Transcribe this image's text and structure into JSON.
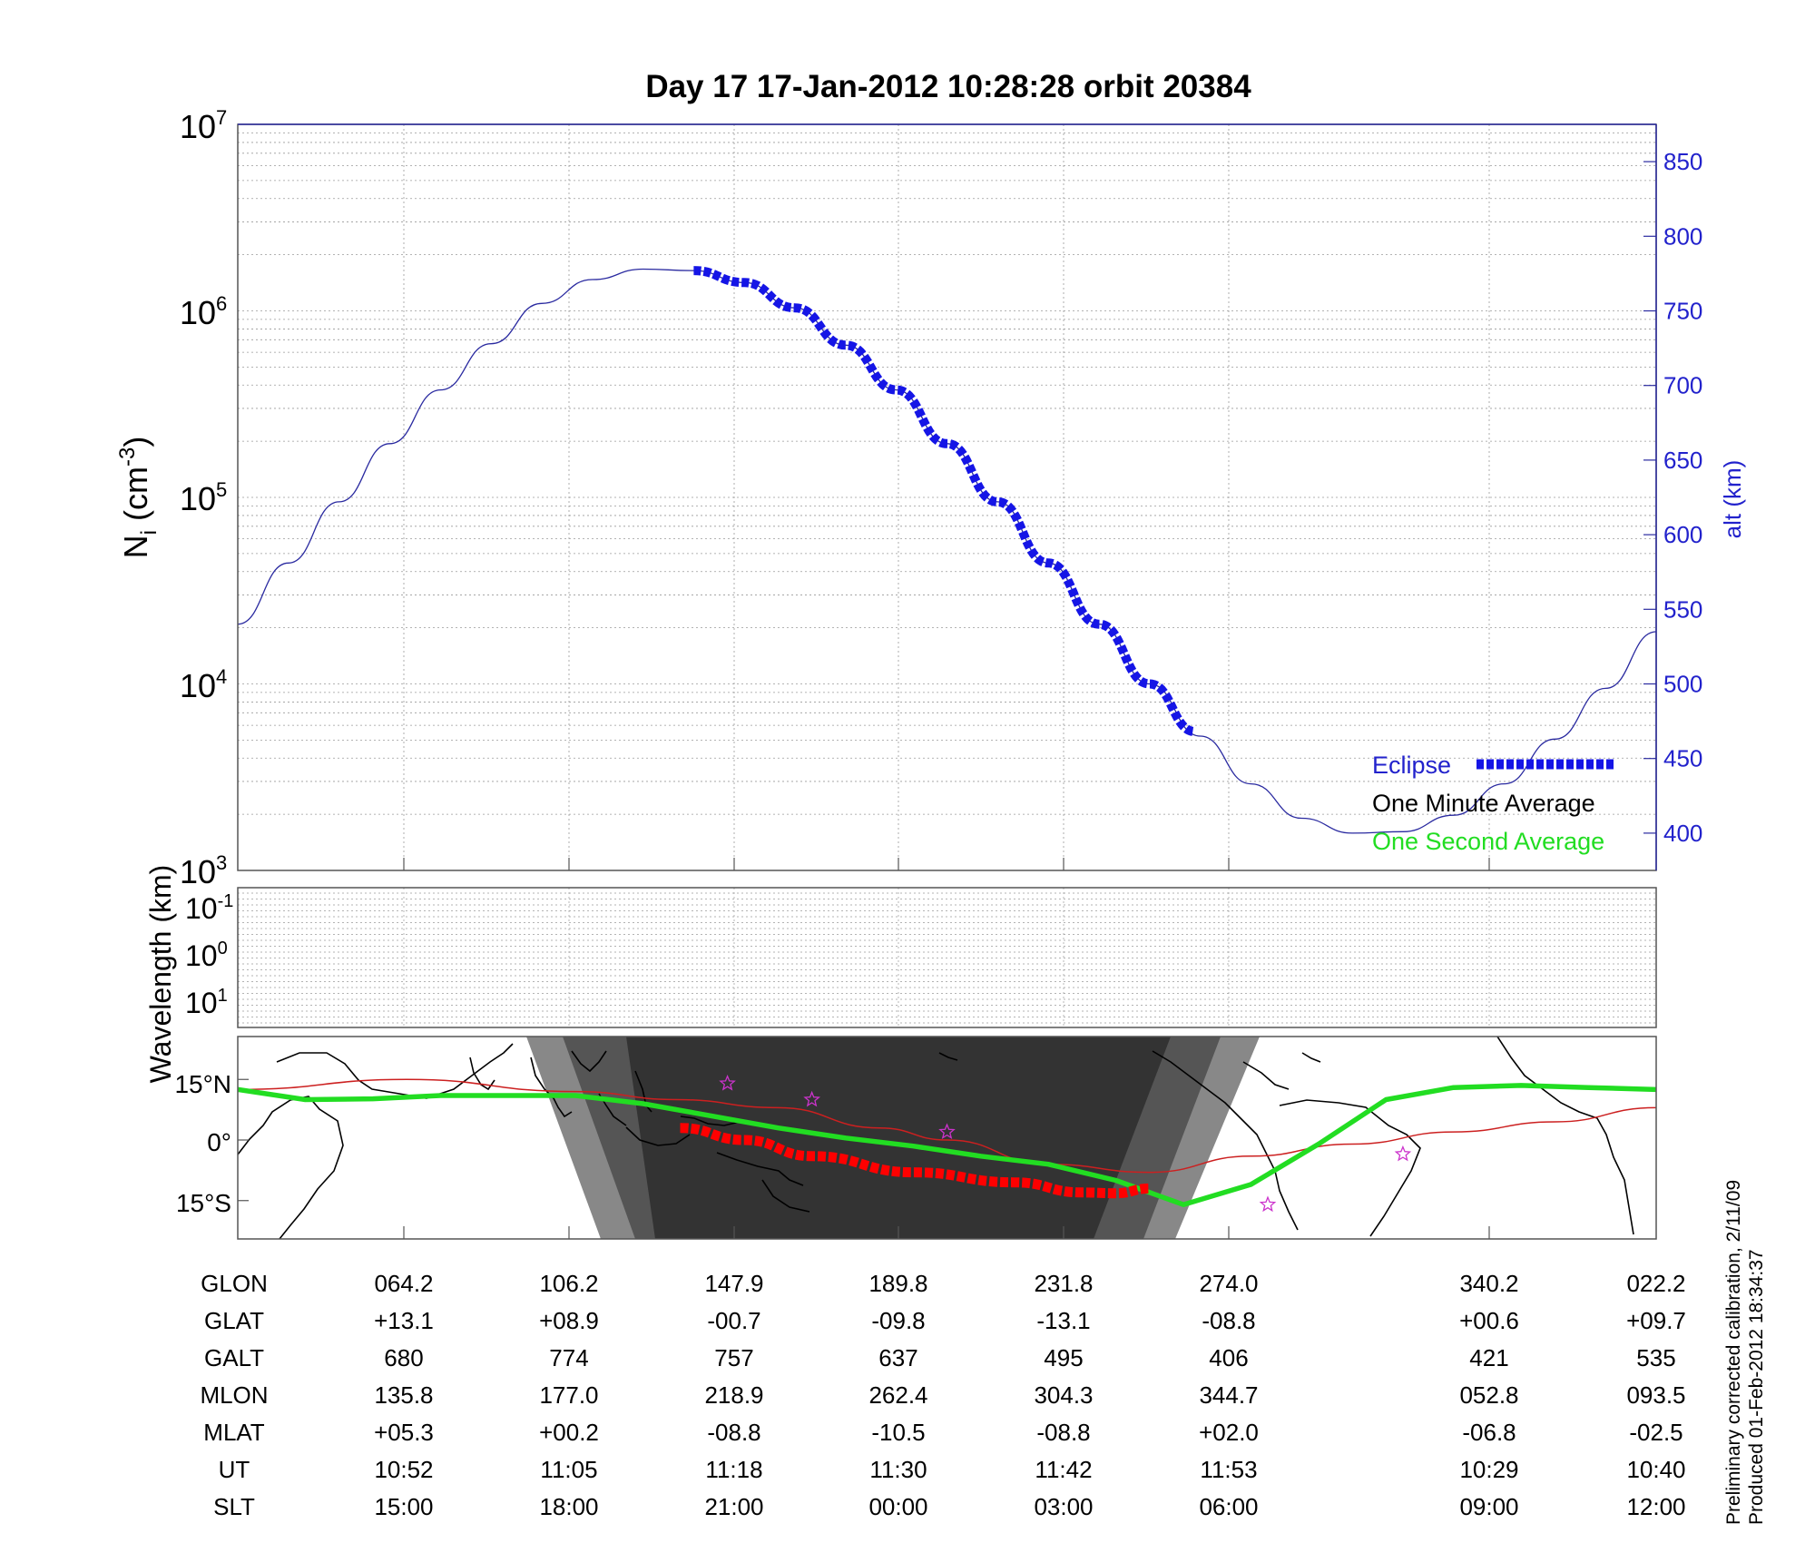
{
  "chart_data": [
    {
      "type": "line",
      "title": "Day 17  17-Jan-2012 10:28:28   orbit 20384",
      "ylabel": "N_i (cm^-3)",
      "ylabel_parts": {
        "main": "N",
        "sub": "i",
        "open": " (cm",
        "sup": "-3",
        "close": ")"
      },
      "yscale": "log",
      "ylim": [
        1000,
        10000000
      ],
      "y_ticks": [
        {
          "base": "10",
          "exp": "3"
        },
        {
          "base": "10",
          "exp": "4"
        },
        {
          "base": "10",
          "exp": "5"
        },
        {
          "base": "10",
          "exp": "6"
        },
        {
          "base": "10",
          "exp": "7"
        }
      ],
      "y2label": "alt (km)",
      "y2lim": [
        375,
        875
      ],
      "y2_ticks": [
        "400",
        "450",
        "500",
        "550",
        "600",
        "650",
        "700",
        "750",
        "800",
        "850"
      ],
      "grid": true,
      "legend_placement": "bottom-right",
      "series": [
        {
          "name": "alt (km)",
          "color": "#2a2aa0",
          "points": [
            [
              0,
              540
            ],
            [
              1,
              581
            ],
            [
              2,
              622
            ],
            [
              3,
              661
            ],
            [
              4,
              697
            ],
            [
              5,
              728
            ],
            [
              6,
              755
            ],
            [
              7,
              771
            ],
            [
              8,
              778
            ],
            [
              9,
              777
            ],
            [
              10,
              769
            ],
            [
              11,
              752
            ],
            [
              12,
              727
            ],
            [
              13,
              697
            ],
            [
              14,
              661
            ],
            [
              15,
              622
            ],
            [
              16,
              581
            ],
            [
              17,
              540
            ],
            [
              18,
              500
            ],
            [
              19,
              465
            ],
            [
              20,
              433
            ],
            [
              21,
              410
            ],
            [
              22,
              400
            ],
            [
              23,
              401
            ],
            [
              24,
              412
            ],
            [
              25,
              433
            ],
            [
              26,
              463
            ],
            [
              27,
              497
            ],
            [
              28,
              535
            ]
          ]
        },
        {
          "name": "Eclipse",
          "color": "#1515e6",
          "style": "dotted-thick",
          "points": [
            [
              9.0,
              777
            ],
            [
              10,
              769
            ],
            [
              11,
              752
            ],
            [
              12,
              727
            ],
            [
              13,
              697
            ],
            [
              14,
              661
            ],
            [
              15,
              622
            ],
            [
              16,
              581
            ],
            [
              17,
              540
            ],
            [
              18,
              500
            ],
            [
              18.9,
              468
            ]
          ]
        }
      ],
      "legend": [
        {
          "label": "Eclipse",
          "color": "#2222cc",
          "marker": "thick-dotted-line",
          "marker_color": "#1515e6"
        },
        {
          "label": "One Minute Average",
          "color": "#000000"
        },
        {
          "label": "One Second Average",
          "color": "#22dd22"
        }
      ]
    },
    {
      "type": "heatmap",
      "ylabel": "Wavelength (km)",
      "yscale": "log",
      "y_ticks": [
        {
          "base": "10",
          "exp": "-1"
        },
        {
          "base": "10",
          "exp": "0"
        },
        {
          "base": "10",
          "exp": "1"
        }
      ],
      "grid": true,
      "note": "no data shown"
    },
    {
      "type": "line",
      "map": "world coastlines with orbit ground track and night-side shading",
      "y_ticks": [
        "15°N",
        "0°",
        "15°S"
      ],
      "series": [
        {
          "name": "One Second Average",
          "color": "#22dd22",
          "points": [
            [
              0,
              12.5
            ],
            [
              2,
              10
            ],
            [
              4,
              10.2
            ],
            [
              6,
              11
            ],
            [
              8,
              11
            ],
            [
              10,
              11
            ],
            [
              12,
              9
            ],
            [
              14,
              6
            ],
            [
              16,
              3
            ],
            [
              18,
              0.5
            ],
            [
              20,
              -1.5
            ],
            [
              22,
              -4
            ],
            [
              24,
              -6
            ],
            [
              26,
              -10
            ],
            [
              28,
              -16
            ],
            [
              30,
              -11
            ],
            [
              32,
              -1
            ],
            [
              34,
              10
            ],
            [
              36,
              13
            ],
            [
              38,
              13.5
            ],
            [
              40,
              13
            ],
            [
              42,
              12.5
            ]
          ]
        },
        {
          "name": "One Minute Average",
          "color": "#cc2020",
          "points": [
            [
              0,
              12.5
            ],
            [
              5,
              15
            ],
            [
              10,
              12
            ],
            [
              13,
              10
            ],
            [
              16,
              8
            ],
            [
              19,
              3
            ],
            [
              21,
              0
            ],
            [
              24,
              -6
            ],
            [
              27,
              -8
            ],
            [
              30,
              -4
            ],
            [
              33,
              -1
            ],
            [
              36,
              2
            ],
            [
              39,
              4.5
            ],
            [
              42,
              8
            ]
          ]
        },
        {
          "name": "Eclipse",
          "color": "#ff0000",
          "style": "dotted-thick",
          "points": [
            [
              13.1,
              3
            ],
            [
              15,
              0
            ],
            [
              17,
              -4
            ],
            [
              20,
              -8
            ],
            [
              23,
              -10.5
            ],
            [
              25,
              -13
            ],
            [
              26,
              -13.2
            ],
            [
              27,
              -12
            ]
          ]
        }
      ],
      "markers": [
        [
          14.5,
          14
        ],
        [
          17,
          10
        ],
        [
          21,
          2
        ],
        [
          30.5,
          -16
        ],
        [
          34.5,
          -3.5
        ]
      ]
    }
  ],
  "table": {
    "row_labels": [
      "GLON",
      "GLAT",
      "GALT",
      "MLON",
      "MLAT",
      "UT",
      "SLT"
    ],
    "columns": [
      [
        "064.2",
        "+13.1",
        "680",
        "135.8",
        "+05.3",
        "10:52",
        "15:00"
      ],
      [
        "106.2",
        "+08.9",
        "774",
        "177.0",
        "+00.2",
        "11:05",
        "18:00"
      ],
      [
        "147.9",
        "-00.7",
        "757",
        "218.9",
        "-08.8",
        "11:18",
        "21:00"
      ],
      [
        "189.8",
        "-09.8",
        "637",
        "262.4",
        "-10.5",
        "11:30",
        "00:00"
      ],
      [
        "231.8",
        "-13.1",
        "495",
        "304.3",
        "-08.8",
        "11:42",
        "03:00"
      ],
      [
        "274.0",
        "-08.8",
        "406",
        "344.7",
        "+02.0",
        "11:53",
        "06:00"
      ],
      [
        "340.2",
        "+00.6",
        "421",
        "052.8",
        "-06.8",
        "10:29",
        "09:00"
      ],
      [
        "022.2",
        "+09.7",
        "535",
        "093.5",
        "-02.5",
        "10:40",
        "12:00"
      ]
    ]
  },
  "footnotes": {
    "calibration": "Preliminary corrected calibration, 2/11/09",
    "produced": "Produced 01-Feb-2012 18:34:37"
  }
}
